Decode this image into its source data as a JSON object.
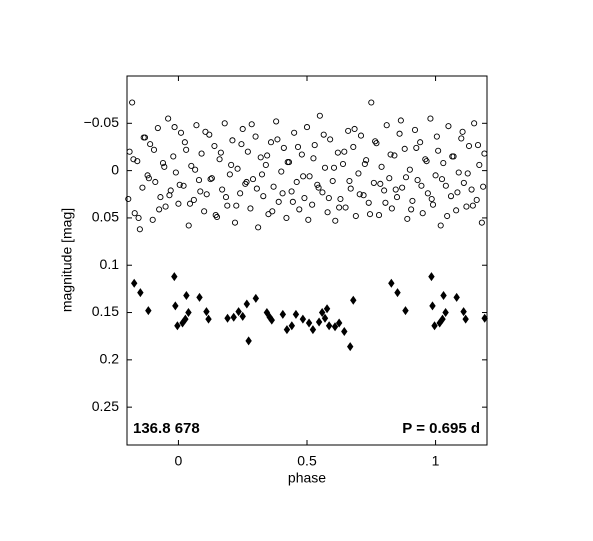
{
  "chart_data": {
    "type": "scatter",
    "xlabel": "phase",
    "ylabel": "magnitude  [mag]",
    "annotations": [
      "136.8 678",
      "P = 0.695 d"
    ],
    "xlim": [
      -0.2,
      1.2
    ],
    "ylim": [
      -0.1,
      0.29
    ],
    "y_inverted": true,
    "xticks": [
      0,
      0.5,
      1
    ],
    "yticks": [
      {
        "value": -0.05,
        "label": "−0.05"
      },
      0,
      0.05,
      0.1,
      0.15,
      0.2,
      0.25
    ],
    "grid": false,
    "series": [
      {
        "marker": "open-circle",
        "color": "#000000",
        "x": [
          -0.19,
          -0.18,
          -0.17,
          -0.16,
          -0.15,
          -0.14,
          -0.13,
          -0.12,
          -0.11,
          -0.1,
          -0.09,
          -0.08,
          -0.07,
          -0.06,
          -0.05,
          -0.04,
          -0.03,
          -0.02,
          -0.01,
          0,
          0.01,
          0.02,
          0.03,
          0.04,
          0.05,
          0.06,
          0.07,
          0.08,
          0.09,
          0.1,
          0.11,
          0.12,
          0.13,
          0.14,
          0.15,
          0.16,
          0.17,
          0.18,
          0.19,
          0.2,
          0.21,
          0.22,
          0.23,
          0.24,
          0.25,
          0.26,
          0.27,
          0.28,
          0.29,
          0.3,
          0.31,
          0.32,
          0.33,
          0.34,
          0.35,
          0.36,
          0.37,
          0.38,
          0.39,
          0.4,
          0.41,
          0.42,
          0.43,
          0.44,
          0.45,
          0.46,
          0.47,
          0.48,
          0.49,
          0.5,
          0.51,
          0.52,
          0.53,
          0.54,
          0.55,
          0.56,
          0.57,
          0.58,
          0.59,
          0.6,
          0.61,
          0.62,
          0.63,
          0.64,
          0.65,
          0.66,
          0.67,
          0.68,
          0.69,
          0.7,
          0.71,
          0.72,
          0.73,
          0.74,
          0.75,
          0.76,
          0.77,
          0.78,
          0.79,
          0.8,
          0.81,
          0.82,
          0.83,
          0.84,
          0.85,
          0.86,
          0.87,
          0.88,
          0.89,
          0.9,
          0.91,
          0.92,
          0.93,
          0.94,
          0.95,
          0.96,
          0.97,
          0.98,
          0.99,
          1,
          1.01,
          1.02,
          1.03,
          1.04,
          1.05,
          1.06,
          1.07,
          1.08,
          1.09,
          1.1,
          1.11,
          1.12,
          1.13,
          1.14,
          1.15,
          1.16,
          1.17,
          1.18,
          1.19,
          -0.195,
          -0.175,
          -0.155,
          -0.135,
          -0.115,
          -0.095,
          -0.075,
          -0.055,
          -0.035,
          -0.015,
          0.005,
          0.025,
          0.045,
          0.065,
          0.085,
          0.105,
          0.125,
          0.145,
          0.165,
          0.185,
          0.205,
          0.225,
          0.245,
          0.265,
          0.285,
          0.305,
          0.325,
          0.345,
          0.365,
          0.385,
          0.405,
          0.425,
          0.445,
          0.465,
          0.485,
          0.505,
          0.525,
          0.545,
          0.565,
          0.585,
          0.605,
          0.625,
          0.645,
          0.665,
          0.685,
          0.705,
          0.725,
          0.745,
          0.765,
          0.785,
          0.805,
          0.825,
          0.845,
          0.865,
          0.885,
          0.905,
          0.925,
          0.945,
          0.965,
          0.985,
          1.005,
          1.025,
          1.045,
          1.065,
          1.085,
          1.105,
          1.125,
          1.145,
          1.165,
          1.185
        ],
        "values": [
          -0.02,
          -0.072,
          0.045,
          -0.01,
          0.062,
          0.018,
          -0.035,
          0.005,
          -0.028,
          0.052,
          0.012,
          -0.045,
          0.028,
          -0.008,
          0.038,
          -0.055,
          0.021,
          -0.015,
          0.002,
          0.035,
          -0.04,
          0.016,
          -0.022,
          0.058,
          -0.005,
          0.031,
          -0.048,
          0.01,
          -0.018,
          0.043,
          0.025,
          -0.038,
          0.008,
          -0.026,
          0.049,
          -0.012,
          0.02,
          -0.05,
          0.037,
          0.004,
          -0.032,
          0.055,
          -0.002,
          0.024,
          -0.044,
          0.014,
          -0.02,
          0.04,
          0.009,
          -0.036,
          0.06,
          -0.014,
          0.027,
          -0.006,
          0.046,
          -0.03,
          0.017,
          -0.052,
          0.033,
          0.001,
          -0.024,
          0.05,
          -0.009,
          0.022,
          -0.04,
          0.012,
          0.041,
          -0.017,
          0.029,
          -0.046,
          0.006,
          0.036,
          -0.027,
          0.015,
          -0.058,
          0.023,
          -0.003,
          0.044,
          -0.033,
          0.011,
          0.053,
          -0.019,
          0.03,
          -0.007,
          0.039,
          -0.042,
          0.019,
          -0.025,
          0.048,
          0.003,
          -0.037,
          0.026,
          -0.011,
          0.034,
          -0.072,
          0.013,
          -0.029,
          0.047,
          -0.004,
          0.021,
          -0.048,
          0.008,
          0.04,
          -0.016,
          0.028,
          -0.039,
          0.018,
          -0.023,
          0.051,
          -0.001,
          0.032,
          -0.043,
          0.01,
          -0.03,
          0.045,
          -0.012,
          0.024,
          -0.055,
          0.036,
          0.005,
          -0.021,
          0.058,
          -0.008,
          0.016,
          -0.047,
          0.027,
          -0.015,
          0.042,
          0.002,
          -0.034,
          0.013,
          0.038,
          -0.026,
          0.02,
          -0.05,
          0.031,
          -0.006,
          0.055,
          -0.018,
          0.03,
          -0.012,
          0.05,
          -0.035,
          0.008,
          -0.022,
          0.041,
          -0.004,
          0.026,
          -0.046,
          0.015,
          -0.03,
          0.035,
          -0.001,
          0.022,
          -0.041,
          0.009,
          0.047,
          -0.019,
          0.028,
          -0.006,
          0.037,
          -0.028,
          0.012,
          -0.049,
          0.019,
          0.004,
          -0.016,
          0.043,
          -0.033,
          0.024,
          -0.009,
          0.033,
          -0.025,
          0.006,
          0.052,
          -0.013,
          0.018,
          -0.038,
          0.029,
          -0.003,
          0.039,
          -0.02,
          0.011,
          -0.044,
          0.025,
          -0.007,
          0.046,
          -0.031,
          0.014,
          0.034,
          -0.017,
          0.02,
          -0.053,
          0.007,
          0.041,
          -0.024,
          0.016,
          -0.01,
          0.03,
          -0.036,
          0.009,
          0.048,
          -0.015,
          0.023,
          -0.041,
          0.003,
          0.037,
          -0.027,
          0.017
        ]
      },
      {
        "marker": "diamond",
        "color": "#000000",
        "x": [
          -0.172,
          -0.148,
          -0.117,
          -0.016,
          -0.012,
          -0.004,
          0.016,
          0.027,
          0.039,
          0.031,
          0.082,
          0.109,
          0.117,
          0.191,
          0.215,
          0.234,
          0.25,
          0.266,
          0.273,
          0.301,
          0.344,
          0.355,
          0.363,
          0.406,
          0.422,
          0.441,
          0.457,
          0.484,
          0.508,
          0.523,
          0.547,
          0.559,
          0.57,
          0.578,
          0.586,
          0.609,
          0.625,
          0.645,
          0.668,
          0.68,
          0.828,
          0.852,
          0.883,
          0.984,
          0.988,
          0.996,
          1.016,
          1.027,
          1.039,
          1.031,
          1.082,
          1.109,
          1.117,
          1.191
        ],
        "values": [
          0.119,
          0.129,
          0.148,
          0.112,
          0.143,
          0.164,
          0.161,
          0.157,
          0.15,
          0.132,
          0.134,
          0.149,
          0.157,
          0.156,
          0.155,
          0.149,
          0.154,
          0.141,
          0.18,
          0.135,
          0.15,
          0.155,
          0.158,
          0.152,
          0.168,
          0.164,
          0.152,
          0.157,
          0.161,
          0.168,
          0.16,
          0.15,
          0.156,
          0.146,
          0.164,
          0.165,
          0.161,
          0.17,
          0.186,
          0.137,
          0.119,
          0.129,
          0.148,
          0.112,
          0.143,
          0.164,
          0.161,
          0.157,
          0.15,
          0.132,
          0.134,
          0.149,
          0.157,
          0.156
        ]
      }
    ]
  }
}
